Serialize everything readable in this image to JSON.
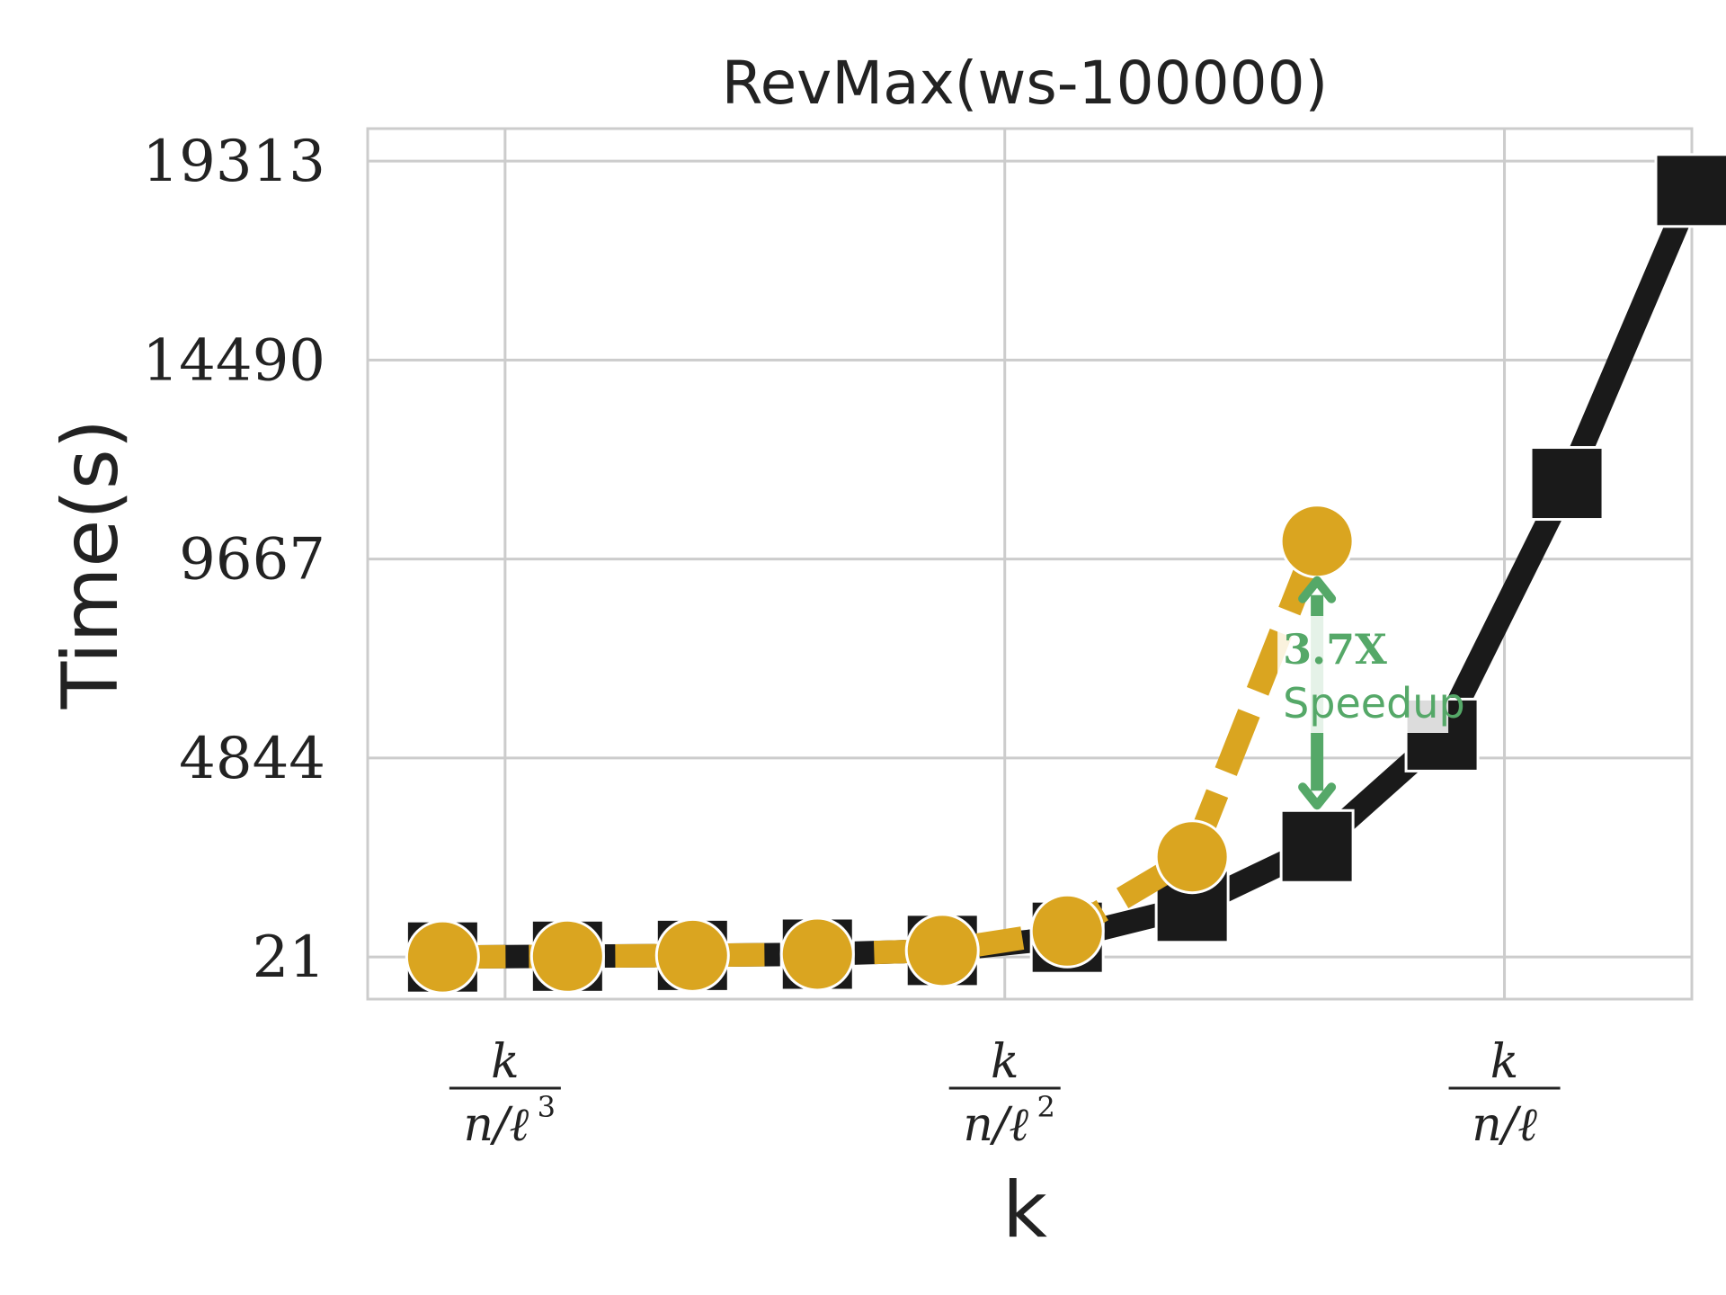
{
  "chart_data": {
    "type": "line",
    "title": "RevMax(ws-100000)",
    "xlabel": "k",
    "ylabel": "Time(s)",
    "ylim": [
      -1000,
      20100
    ],
    "yticks": [
      21,
      4844,
      9667,
      14490,
      19313
    ],
    "ytick_labels": [
      "21",
      "4844",
      "9667",
      "14490",
      "19313"
    ],
    "x_index_range": [
      -0.6,
      10.0
    ],
    "xticks": [
      {
        "pos": 0.5,
        "num": "k",
        "den": "n/ℓ",
        "exp": "3"
      },
      {
        "pos": 4.5,
        "num": "k",
        "den": "n/ℓ",
        "exp": "2"
      },
      {
        "pos": 8.5,
        "num": "k",
        "den": "n/ℓ",
        "exp": ""
      }
    ],
    "grid": true,
    "series": [
      {
        "color": "#1a1a1a",
        "marker": "square",
        "style": "solid",
        "x": [
          0,
          1,
          2,
          3,
          4,
          5,
          6,
          7,
          8,
          9,
          10
        ],
        "values": [
          21,
          40,
          60,
          90,
          180,
          500,
          1250,
          2700,
          5400,
          11500,
          18600
        ]
      },
      {
        "color": "#daa520",
        "marker": "circle",
        "style": "dashed",
        "x": [
          0,
          1,
          2,
          3,
          4,
          5,
          6,
          7
        ],
        "values": [
          21,
          40,
          60,
          90,
          180,
          650,
          2450,
          10100
        ]
      }
    ],
    "annotation": {
      "bold": "3.7X",
      "text": "Speedup",
      "color": "#55a868",
      "x": 7,
      "y_from": 2700,
      "y_to": 10100
    }
  }
}
